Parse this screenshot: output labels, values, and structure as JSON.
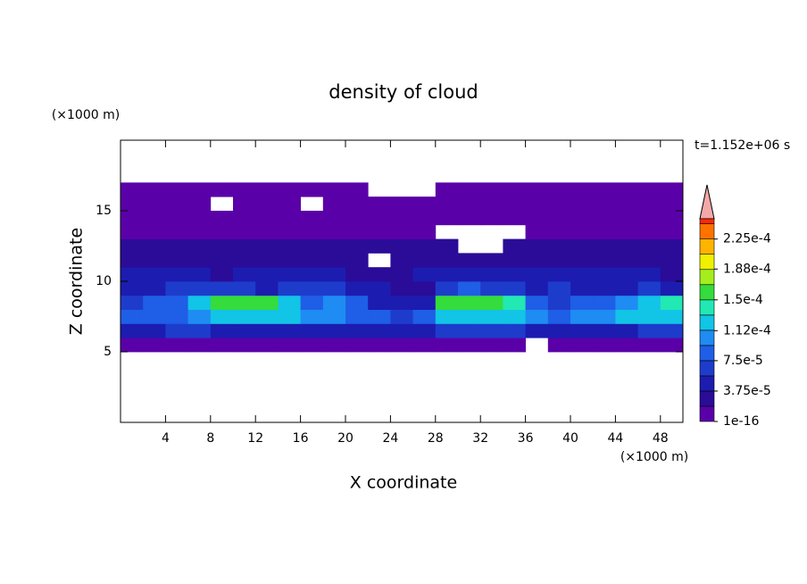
{
  "chart_data": {
    "type": "contour",
    "title": "density of cloud",
    "xlabel": "X coordinate",
    "ylabel": "Z coordinate",
    "x_unit": "(×1000 m)",
    "y_unit": "(×1000 m)",
    "annotation": "t=1.152e+06 s",
    "xlim": [
      0,
      50
    ],
    "ylim": [
      0,
      20
    ],
    "xticks": [
      4,
      8,
      12,
      16,
      20,
      24,
      28,
      32,
      36,
      40,
      44,
      48
    ],
    "yticks": [
      5,
      10,
      15
    ],
    "x_edges": [
      0,
      2,
      4,
      6,
      8,
      10,
      12,
      14,
      16,
      18,
      20,
      22,
      24,
      26,
      28,
      30,
      32,
      34,
      36,
      38,
      40,
      42,
      44,
      46,
      48,
      50
    ],
    "y_edges": [
      5,
      6,
      7,
      8,
      9,
      10,
      11,
      12,
      13,
      14,
      15,
      16,
      17
    ],
    "z": [
      [
        1.5e-05,
        1.5e-05,
        1.5e-05,
        1.5e-05,
        1.5e-05,
        1.5e-05,
        1.5e-05,
        1.5e-05,
        1.5e-05,
        1.5e-05,
        1.5e-05,
        1.5e-05,
        1.5e-05,
        1.5e-05,
        1.5e-05,
        1.5e-05,
        1.5e-05,
        1.5e-05,
        null,
        1.5e-05,
        1.5e-05,
        1.5e-05,
        1.5e-05,
        1.5e-05,
        1.5e-05
      ],
      [
        5e-05,
        5e-05,
        6e-05,
        6e-05,
        5e-05,
        5e-05,
        5e-05,
        5e-05,
        5e-05,
        5e-05,
        5e-05,
        5e-05,
        4e-05,
        4e-05,
        6e-05,
        6e-05,
        6e-05,
        6e-05,
        5e-05,
        4e-05,
        5e-05,
        5e-05,
        5e-05,
        6e-05,
        6e-05
      ],
      [
        9e-05,
        9e-05,
        9e-05,
        0.00011,
        0.00013,
        0.00013,
        0.00013,
        0.00012,
        0.0001,
        0.00011,
        9e-05,
        8e-05,
        6e-05,
        8e-05,
        0.00012,
        0.00013,
        0.00013,
        0.00012,
        0.00011,
        9e-05,
        0.0001,
        0.00011,
        0.00012,
        0.00013,
        0.00013
      ],
      [
        7e-05,
        8e-05,
        8e-05,
        0.00012,
        0.000155,
        0.000155,
        0.00015,
        0.00012,
        9e-05,
        0.0001,
        8e-05,
        5e-05,
        4e-05,
        5e-05,
        0.00015,
        0.000165,
        0.00016,
        0.00014,
        9e-05,
        7e-05,
        8e-05,
        9e-05,
        0.00011,
        0.00013,
        0.00014
      ],
      [
        5e-05,
        5e-05,
        6e-05,
        6e-05,
        6e-05,
        6e-05,
        5e-05,
        6e-05,
        7e-05,
        6e-05,
        5e-05,
        4e-05,
        3e-05,
        3e-05,
        7e-05,
        8e-05,
        7e-05,
        6e-05,
        5e-05,
        6e-05,
        5e-05,
        5e-05,
        5e-05,
        6e-05,
        5e-05
      ],
      [
        4e-05,
        4e-05,
        4e-05,
        4e-05,
        3e-05,
        4e-05,
        4e-05,
        4e-05,
        4e-05,
        4e-05,
        3e-05,
        3e-05,
        3e-05,
        4e-05,
        4e-05,
        4e-05,
        4e-05,
        4e-05,
        4e-05,
        4e-05,
        4e-05,
        4e-05,
        4e-05,
        4e-05,
        3e-05
      ],
      [
        3e-05,
        2.5e-05,
        3e-05,
        3e-05,
        2.5e-05,
        3e-05,
        3e-05,
        3e-05,
        2.5e-05,
        3e-05,
        2.5e-05,
        null,
        2.5e-05,
        2e-05,
        2e-05,
        2e-05,
        2e-05,
        3e-05,
        3e-05,
        3e-05,
        3e-05,
        3e-05,
        3e-05,
        3e-05,
        3e-05
      ],
      [
        2e-05,
        2e-05,
        2e-05,
        2e-05,
        2e-05,
        2e-05,
        2e-05,
        2e-05,
        2e-05,
        2e-05,
        2e-05,
        2e-05,
        2e-05,
        2e-05,
        2e-05,
        null,
        null,
        2e-05,
        2e-05,
        2e-05,
        2e-05,
        2.5e-05,
        2e-05,
        2e-05,
        2e-05
      ],
      [
        1.5e-05,
        1.5e-05,
        1.5e-05,
        1.5e-05,
        1.5e-05,
        1.5e-05,
        1.5e-05,
        1.5e-05,
        1.5e-05,
        1.5e-05,
        1.5e-05,
        1.5e-05,
        1.5e-05,
        1.5e-05,
        null,
        null,
        null,
        null,
        1.5e-05,
        1.5e-05,
        1.5e-05,
        1.5e-05,
        1.5e-05,
        1.5e-05,
        1.5e-05
      ],
      [
        1e-05,
        1e-05,
        1e-05,
        1e-05,
        1e-05,
        1e-05,
        1e-05,
        1e-05,
        1e-05,
        1e-05,
        1e-05,
        1e-05,
        1e-05,
        1e-05,
        1e-05,
        1e-05,
        1e-05,
        1e-05,
        1e-05,
        1e-05,
        1e-05,
        1e-05,
        1e-05,
        1e-05,
        1e-05
      ],
      [
        1e-05,
        1e-05,
        1e-05,
        1e-05,
        null,
        1e-05,
        1e-05,
        1e-05,
        null,
        1e-05,
        1e-05,
        1e-05,
        1e-05,
        1e-05,
        1e-05,
        1e-05,
        1e-05,
        1e-05,
        1e-05,
        1e-05,
        1e-05,
        1e-05,
        1e-05,
        1e-05,
        1e-05
      ],
      [
        1e-05,
        1e-05,
        1e-05,
        1e-05,
        1e-05,
        1e-05,
        1e-05,
        1e-05,
        1e-05,
        1e-05,
        1e-05,
        null,
        null,
        null,
        1e-05,
        1e-05,
        1e-05,
        1e-05,
        1e-05,
        1e-05,
        1e-05,
        1e-05,
        1e-05,
        1e-05,
        1e-05
      ]
    ],
    "levels": [
      1e-16,
      1.875e-05,
      3.75e-05,
      5.625e-05,
      7.5e-05,
      9.375e-05,
      0.0001125,
      0.00013125,
      0.00015,
      0.00016875,
      0.0001875,
      0.00020625,
      0.000225,
      0.00024375
    ],
    "colors": [
      "#5a00a8",
      "#2a0c98",
      "#1c1cb0",
      "#1e3ccc",
      "#1f5ee6",
      "#1e8cf2",
      "#12c4e6",
      "#22e8b4",
      "#34dc3c",
      "#a4ee1e",
      "#f0f000",
      "#ffb400",
      "#ff7200",
      "#ff2a00"
    ],
    "clim": [
      1e-16,
      0.00025
    ],
    "cbar_ticks": [
      {
        "value": 1e-16,
        "label": "1e-16"
      },
      {
        "value": 3.75e-05,
        "label": "3.75e-5"
      },
      {
        "value": 7.5e-05,
        "label": "7.5e-5"
      },
      {
        "value": 0.000112,
        "label": "1.12e-4"
      },
      {
        "value": 0.00015,
        "label": "1.5e-4"
      },
      {
        "value": 0.000188,
        "label": "1.88e-4"
      },
      {
        "value": 0.000225,
        "label": "2.25e-4"
      }
    ]
  }
}
